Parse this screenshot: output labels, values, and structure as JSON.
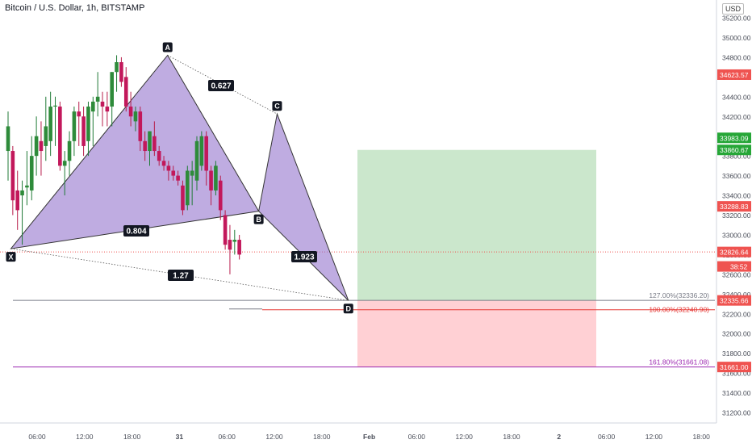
{
  "title": "Bitcoin / U.S. Dollar, 1h, BITSTAMP",
  "currency": "USD",
  "colors": {
    "up": "#26a69a",
    "up_body": "#2e8b3a",
    "down": "#ef5350",
    "down_body": "#c2185b",
    "pattern_fill": "#9575cd",
    "profit": "#c8e6c9",
    "loss": "#ffcdd2",
    "price_red": "#ef5350",
    "price_green": "#26a637",
    "fib_purple": "#9c27b0"
  },
  "chart_data": {
    "type": "candlestick",
    "symbol": "Bitcoin / U.S. Dollar",
    "timeframe": "1h",
    "exchange": "BITSTAMP",
    "ylim": [
      31000,
      35400
    ],
    "y_ticks": [
      31200,
      31400,
      31600,
      31800,
      32000,
      32200,
      32400,
      32600,
      32800,
      33000,
      33200,
      33400,
      33600,
      33800,
      34000,
      34200,
      34400,
      34600,
      34800,
      35000,
      35200
    ],
    "x_ticks": [
      "06:00",
      "12:00",
      "18:00",
      "31",
      "06:00",
      "12:00",
      "18:00",
      "Feb",
      "06:00",
      "12:00",
      "18:00",
      "2",
      "06:00",
      "12:00",
      "18:00"
    ],
    "candles": [
      {
        "o": 33850,
        "h": 34250,
        "l": 33550,
        "c": 34100
      },
      {
        "o": 33850,
        "h": 33900,
        "l": 33200,
        "c": 33350
      },
      {
        "o": 33450,
        "h": 33650,
        "l": 33050,
        "c": 33250
      },
      {
        "o": 33400,
        "h": 33550,
        "l": 32900,
        "c": 33450
      },
      {
        "o": 33480,
        "h": 33850,
        "l": 33300,
        "c": 33500
      },
      {
        "o": 33450,
        "h": 34000,
        "l": 33350,
        "c": 33800
      },
      {
        "o": 33800,
        "h": 34200,
        "l": 33600,
        "c": 34000
      },
      {
        "o": 33950,
        "h": 34150,
        "l": 33600,
        "c": 33850
      },
      {
        "o": 33900,
        "h": 34400,
        "l": 33750,
        "c": 34100
      },
      {
        "o": 33950,
        "h": 34450,
        "l": 33800,
        "c": 34300
      },
      {
        "o": 34300,
        "h": 34400,
        "l": 33900,
        "c": 34310
      },
      {
        "o": 34300,
        "h": 34350,
        "l": 33650,
        "c": 33700
      },
      {
        "o": 33700,
        "h": 33850,
        "l": 33400,
        "c": 33750
      },
      {
        "o": 33750,
        "h": 34050,
        "l": 33600,
        "c": 33950
      },
      {
        "o": 33950,
        "h": 34300,
        "l": 33800,
        "c": 34250
      },
      {
        "o": 34250,
        "h": 34350,
        "l": 33900,
        "c": 34200
      },
      {
        "o": 34200,
        "h": 34300,
        "l": 33800,
        "c": 33900
      },
      {
        "o": 33950,
        "h": 34350,
        "l": 33800,
        "c": 34300
      },
      {
        "o": 34250,
        "h": 34400,
        "l": 33900,
        "c": 34350
      },
      {
        "o": 34350,
        "h": 34650,
        "l": 34200,
        "c": 34400
      },
      {
        "o": 34350,
        "h": 34450,
        "l": 34100,
        "c": 34300
      },
      {
        "o": 34300,
        "h": 34450,
        "l": 34100,
        "c": 34250
      },
      {
        "o": 34300,
        "h": 34650,
        "l": 34100,
        "c": 34650
      },
      {
        "o": 34650,
        "h": 34820,
        "l": 34450,
        "c": 34750
      },
      {
        "o": 34750,
        "h": 34800,
        "l": 34500,
        "c": 34550
      },
      {
        "o": 34600,
        "h": 34700,
        "l": 34250,
        "c": 34300
      },
      {
        "o": 34300,
        "h": 34450,
        "l": 34100,
        "c": 34200
      },
      {
        "o": 34150,
        "h": 34300,
        "l": 34050,
        "c": 34250
      },
      {
        "o": 34250,
        "h": 34300,
        "l": 33850,
        "c": 33950
      },
      {
        "o": 33950,
        "h": 34050,
        "l": 33750,
        "c": 33850
      },
      {
        "o": 33850,
        "h": 34050,
        "l": 33700,
        "c": 34050
      },
      {
        "o": 34000,
        "h": 34150,
        "l": 33800,
        "c": 33850
      },
      {
        "o": 33850,
        "h": 33900,
        "l": 33700,
        "c": 33750
      },
      {
        "o": 33750,
        "h": 33800,
        "l": 33650,
        "c": 33700
      },
      {
        "o": 33700,
        "h": 33750,
        "l": 33550,
        "c": 33650
      },
      {
        "o": 33650,
        "h": 33700,
        "l": 33550,
        "c": 33600
      },
      {
        "o": 33600,
        "h": 33650,
        "l": 33500,
        "c": 33550
      },
      {
        "o": 33500,
        "h": 33550,
        "l": 33200,
        "c": 33250
      },
      {
        "o": 33300,
        "h": 33700,
        "l": 33250,
        "c": 33650
      },
      {
        "o": 33600,
        "h": 33750,
        "l": 33300,
        "c": 33650
      },
      {
        "o": 33550,
        "h": 34000,
        "l": 33450,
        "c": 33950
      },
      {
        "o": 33700,
        "h": 34050,
        "l": 33650,
        "c": 34000
      },
      {
        "o": 34000,
        "h": 34050,
        "l": 33500,
        "c": 33650
      },
      {
        "o": 33650,
        "h": 33700,
        "l": 33300,
        "c": 33450
      },
      {
        "o": 33450,
        "h": 33750,
        "l": 33400,
        "c": 33700
      },
      {
        "o": 33550,
        "h": 33600,
        "l": 33150,
        "c": 33250
      },
      {
        "o": 33200,
        "h": 33250,
        "l": 32850,
        "c": 32900
      },
      {
        "o": 32950,
        "h": 33100,
        "l": 32600,
        "c": 32850
      },
      {
        "o": 32930,
        "h": 33050,
        "l": 32800,
        "c": 32950
      },
      {
        "o": 32950,
        "h": 33000,
        "l": 32750,
        "c": 32800
      }
    ],
    "harmonic_pattern": {
      "points": [
        {
          "label": "X",
          "price": 32860
        },
        {
          "label": "A",
          "price": 34820
        },
        {
          "label": "B",
          "price": 33240
        },
        {
          "label": "C",
          "price": 34225
        },
        {
          "label": "D",
          "price": 32335
        }
      ],
      "ratios": [
        "0.627",
        "0.804",
        "1.923",
        "1.27"
      ]
    },
    "position": {
      "entry": 32335.66,
      "target": 33860.67,
      "stop": 31661.0
    },
    "fib_levels": [
      {
        "label": "127.00%(32336.20)",
        "value": 32336.2
      },
      {
        "label": "100.00%(32240.90)",
        "value": 32240.9
      },
      {
        "label": "161.80%(31661.08)",
        "value": 31661.08
      }
    ],
    "price_labels": [
      {
        "text": "34623.57",
        "value": 34623.57,
        "color": "#ef5350"
      },
      {
        "text": "33983.09",
        "value": 33983.09,
        "color": "#26a637"
      },
      {
        "text": "33860.67",
        "value": 33860.67,
        "color": "#26a637"
      },
      {
        "text": "33288.83",
        "value": 33288.83,
        "color": "#ef5350"
      },
      {
        "text": "32826.64",
        "value": 32826.64,
        "color": "#ef5350"
      },
      {
        "text": "38:52",
        "value": 32680,
        "color": "#ef5350"
      },
      {
        "text": "32335.66",
        "value": 32335.66,
        "color": "#ef5350"
      },
      {
        "text": "31661.00",
        "value": 31661.0,
        "color": "#ef5350"
      }
    ],
    "current_price": 32826.64,
    "grid": false
  }
}
